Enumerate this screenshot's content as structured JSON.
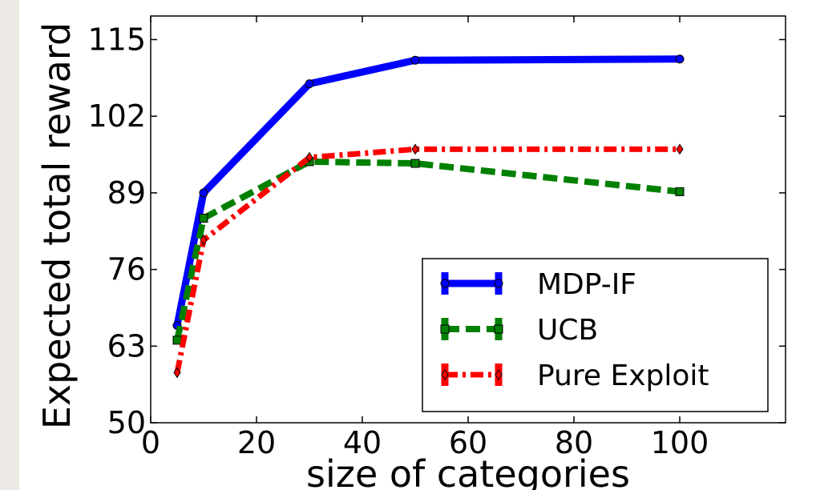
{
  "chart_data": {
    "type": "line",
    "title": "",
    "xlabel": "size of categories",
    "ylabel": "Expected total reward",
    "xlim": [
      0,
      120
    ],
    "ylim": [
      50,
      119
    ],
    "x_ticks": [
      "0",
      "20",
      "40",
      "60",
      "80",
      "100"
    ],
    "y_ticks": [
      "50",
      "63",
      "76",
      "89",
      "102",
      "115"
    ],
    "grid": false,
    "legend_position": "lower-right",
    "x": [
      5,
      10,
      30,
      50,
      100
    ],
    "series": [
      {
        "name": "MDP-IF",
        "values": [
          66.5,
          89.0,
          107.5,
          111.5,
          111.7
        ],
        "color": "#0000ff",
        "style": "solid",
        "marker": "circle"
      },
      {
        "name": "UCB",
        "values": [
          64.0,
          84.7,
          94.3,
          94.0,
          89.2
        ],
        "color": "#008000",
        "style": "dashed",
        "marker": "square"
      },
      {
        "name": "Pure Exploit",
        "values": [
          58.5,
          81.0,
          95.0,
          96.4,
          96.4
        ],
        "color": "#ff0000",
        "style": "dashdot",
        "marker": "diamond"
      }
    ]
  }
}
